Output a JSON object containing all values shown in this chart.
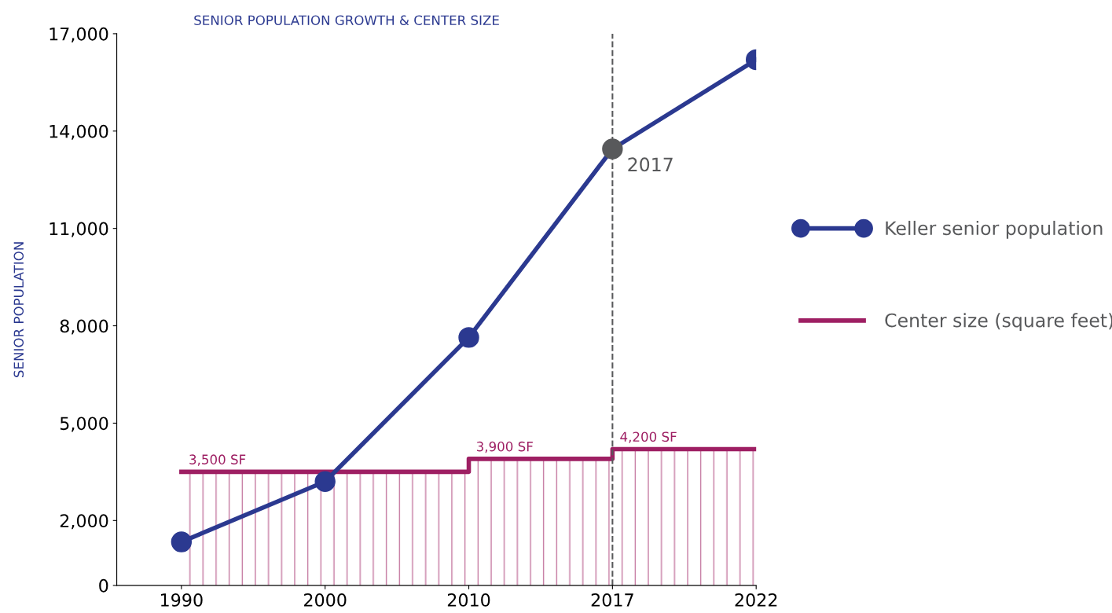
{
  "chart_data": {
    "type": "line",
    "title": "SENIOR POPULATION GROWTH & CENTER SIZE",
    "ylabel": "SENIOR POPULATION",
    "categories": [
      "1990",
      "2000",
      "2010",
      "2017",
      "2022"
    ],
    "series": [
      {
        "name": "Keller senior population",
        "color": "#2b3990",
        "colors": [
          "#2b3990",
          "#2b3990",
          "#2b3990",
          "#58595b",
          "#2b3990"
        ],
        "values": [
          1340,
          3200,
          7640,
          13450,
          16200
        ],
        "marker": "circle"
      },
      {
        "name": "Center size (square feet)",
        "type": "area",
        "color": "#9e1f63",
        "values": [
          3500,
          3500,
          3900,
          4200,
          4200
        ],
        "value_labels": [
          "3,500 SF",
          null,
          "3,900 SF",
          "4,200 SF",
          null
        ]
      }
    ],
    "ylim": [
      0,
      17000
    ],
    "yticks": [
      0,
      {
        "value": 2000,
        "label": "2,000"
      },
      {
        "value": 5000,
        "label": "5,000"
      },
      {
        "value": 8000,
        "label": "8,000"
      },
      {
        "value": 11000,
        "label": "11,000"
      },
      {
        "value": 14000,
        "label": "14,000"
      },
      {
        "value": 17000,
        "label": "17,000"
      }
    ],
    "ref_lines": [
      {
        "axis": "x",
        "value": "2017",
        "label": "2017",
        "color": "#58595b",
        "line_style": "dashed"
      }
    ],
    "grid": false,
    "legend": "right"
  }
}
